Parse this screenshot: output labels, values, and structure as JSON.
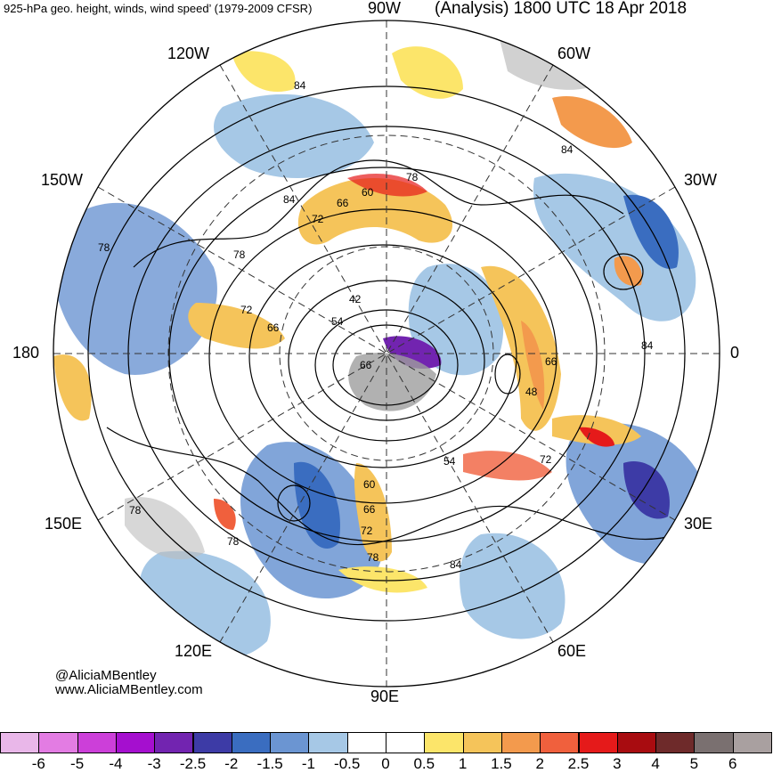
{
  "header": {
    "left_title": "925-hPa geo. height, winds, wind speed’ (1979-2009 CFSR)",
    "right_title": "(Analysis) 1800 UTC 18 Apr 2018"
  },
  "map": {
    "projection": "north polar stereographic",
    "longitude_labels": {
      "top": "90W",
      "upper_left": "120W",
      "upper_right": "60W",
      "left_upper": "150W",
      "right_upper": "30W",
      "left": "180",
      "right": "0",
      "left_lower": "150E",
      "right_lower": "30E",
      "lower_left": "120E",
      "lower_right": "60E",
      "bottom": "90E"
    },
    "height_contour_labels": [
      "84",
      "78",
      "72",
      "66",
      "60",
      "54",
      "48",
      "42"
    ]
  },
  "credits": {
    "handle": "@AliciaMBentley",
    "website": "www.AliciaMBentley.com"
  },
  "colorbar": {
    "tick_labels": [
      "-6",
      "-5",
      "-4",
      "-3",
      "-2.5",
      "-2",
      "-1.5",
      "-1",
      "-0.5",
      "0",
      "0.5",
      "1",
      "1.5",
      "2",
      "2.5",
      "3",
      "4",
      "5",
      "6"
    ],
    "colors": [
      "#e9b7e9",
      "#e37ce3",
      "#cc3fd9",
      "#a50fcf",
      "#7224b0",
      "#3d3ba6",
      "#3a6dc0",
      "#6b95d2",
      "#a6c8e6",
      "#ffffff",
      "#ffffff",
      "#fce56a",
      "#f5c45a",
      "#f39a4d",
      "#f0603d",
      "#e51a1a",
      "#a80c10",
      "#6e2a2a",
      "#7a7070",
      "#a9a0a0"
    ]
  }
}
